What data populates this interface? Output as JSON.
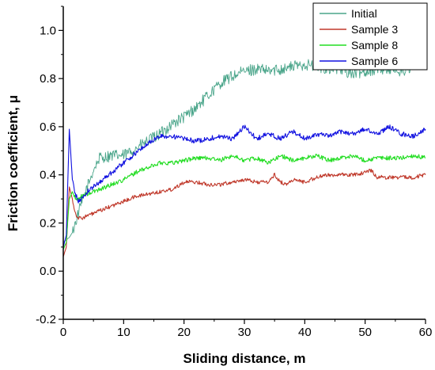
{
  "chart_data": {
    "type": "line",
    "xlabel": "Sliding distance, m",
    "ylabel": "Friction coefficient, μ",
    "xlim": [
      0,
      60
    ],
    "ylim": [
      -0.2,
      1.1
    ],
    "xticks": [
      0,
      10,
      20,
      30,
      40,
      50,
      60
    ],
    "yticks": [
      -0.2,
      0.0,
      0.2,
      0.4,
      0.6,
      0.8,
      1.0
    ],
    "grid": false,
    "legend_position": "top-right",
    "series": [
      {
        "name": "Initial",
        "color": "#4aa58a",
        "noise": 0.025,
        "x": [
          0,
          0.5,
          1,
          1.5,
          2,
          3,
          4,
          5,
          6,
          8,
          10,
          12,
          14,
          16,
          18,
          20,
          22,
          24,
          26,
          28,
          30,
          32,
          34,
          36,
          38,
          40,
          42,
          44,
          46,
          48,
          50,
          52,
          54,
          56,
          58,
          60
        ],
        "y": [
          0.12,
          0.13,
          0.14,
          0.16,
          0.2,
          0.28,
          0.35,
          0.42,
          0.47,
          0.48,
          0.48,
          0.51,
          0.54,
          0.57,
          0.61,
          0.64,
          0.68,
          0.73,
          0.78,
          0.81,
          0.83,
          0.84,
          0.83,
          0.84,
          0.85,
          0.86,
          0.85,
          0.84,
          0.84,
          0.82,
          0.83,
          0.84,
          0.84,
          0.83,
          0.85,
          0.87
        ]
      },
      {
        "name": "Sample 3",
        "color": "#c0392b",
        "noise": 0.008,
        "x": [
          0,
          0.5,
          1,
          1.5,
          2,
          2.5,
          3,
          4,
          6,
          8,
          10,
          12,
          14,
          16,
          18,
          20,
          22,
          24,
          26,
          28,
          30,
          32,
          34,
          35,
          36,
          37,
          38,
          40,
          42,
          44,
          46,
          48,
          50,
          51,
          52,
          54,
          56,
          58,
          60
        ],
        "y": [
          0.06,
          0.1,
          0.35,
          0.3,
          0.24,
          0.22,
          0.22,
          0.23,
          0.25,
          0.27,
          0.29,
          0.31,
          0.32,
          0.33,
          0.34,
          0.37,
          0.37,
          0.36,
          0.36,
          0.37,
          0.38,
          0.37,
          0.37,
          0.4,
          0.37,
          0.36,
          0.38,
          0.37,
          0.39,
          0.4,
          0.4,
          0.4,
          0.41,
          0.42,
          0.39,
          0.39,
          0.39,
          0.39,
          0.4
        ]
      },
      {
        "name": "Sample 8",
        "color": "#22dd22",
        "noise": 0.009,
        "x": [
          0,
          0.5,
          1,
          1.5,
          2,
          2.5,
          3,
          4,
          6,
          8,
          10,
          12,
          14,
          16,
          18,
          20,
          22,
          24,
          26,
          28,
          30,
          32,
          34,
          36,
          38,
          40,
          42,
          44,
          46,
          48,
          50,
          52,
          54,
          56,
          58,
          60
        ],
        "y": [
          0.09,
          0.12,
          0.3,
          0.33,
          0.3,
          0.3,
          0.31,
          0.32,
          0.34,
          0.36,
          0.38,
          0.41,
          0.43,
          0.45,
          0.45,
          0.46,
          0.47,
          0.47,
          0.46,
          0.48,
          0.46,
          0.47,
          0.45,
          0.48,
          0.46,
          0.47,
          0.48,
          0.46,
          0.47,
          0.48,
          0.46,
          0.47,
          0.47,
          0.47,
          0.48,
          0.47
        ]
      },
      {
        "name": "Sample 6",
        "color": "#1010e0",
        "noise": 0.01,
        "x": [
          0,
          0.5,
          1,
          1.5,
          2,
          2.5,
          3,
          4,
          6,
          8,
          10,
          12,
          14,
          16,
          18,
          20,
          22,
          24,
          26,
          28,
          30,
          32,
          34,
          36,
          38,
          40,
          42,
          44,
          46,
          48,
          50,
          52,
          54,
          56,
          58,
          60
        ],
        "y": [
          0.1,
          0.15,
          0.59,
          0.38,
          0.32,
          0.29,
          0.3,
          0.33,
          0.37,
          0.41,
          0.45,
          0.49,
          0.53,
          0.56,
          0.56,
          0.55,
          0.54,
          0.55,
          0.56,
          0.55,
          0.6,
          0.55,
          0.57,
          0.55,
          0.58,
          0.55,
          0.57,
          0.56,
          0.58,
          0.57,
          0.59,
          0.57,
          0.6,
          0.57,
          0.56,
          0.59
        ]
      }
    ]
  }
}
